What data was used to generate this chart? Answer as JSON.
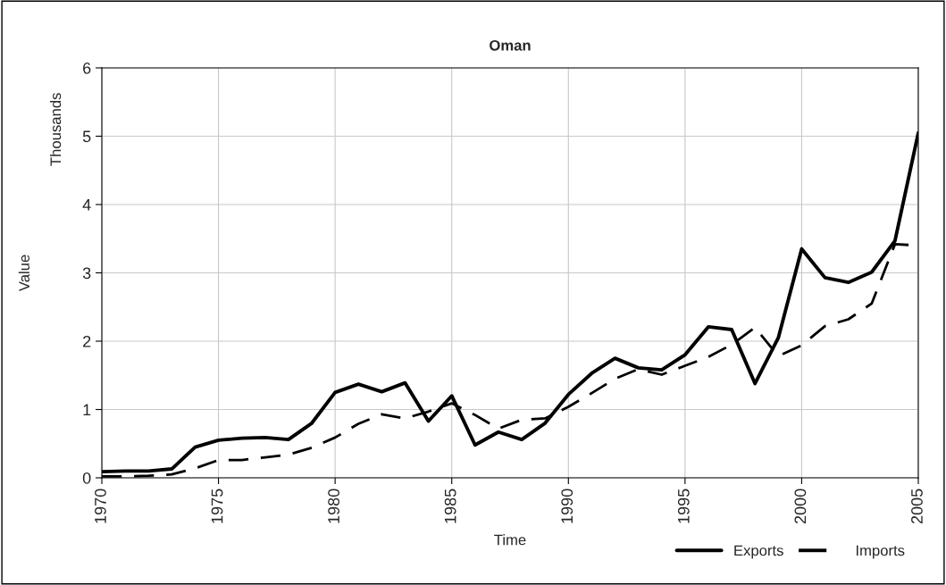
{
  "chart_data": {
    "type": "line",
    "title": "Oman",
    "xlabel": "Time",
    "ylabel": "Value",
    "annotations": [
      "Thousands"
    ],
    "x": [
      1970,
      1971,
      1972,
      1973,
      1974,
      1975,
      1976,
      1977,
      1978,
      1979,
      1980,
      1981,
      1982,
      1983,
      1984,
      1985,
      1986,
      1987,
      1988,
      1989,
      1990,
      1991,
      1992,
      1993,
      1994,
      1995,
      1996,
      1997,
      1998,
      1999,
      2000,
      2001,
      2002,
      2003,
      2004,
      2005
    ],
    "series": [
      {
        "name": "Exports",
        "color": "#000000",
        "line_style": "solid",
        "values": [
          0.09,
          0.1,
          0.1,
          0.13,
          0.45,
          0.55,
          0.58,
          0.59,
          0.56,
          0.8,
          1.25,
          1.37,
          1.26,
          1.39,
          0.83,
          1.2,
          0.48,
          0.67,
          0.56,
          0.8,
          1.22,
          1.53,
          1.75,
          1.61,
          1.58,
          1.8,
          2.21,
          2.17,
          1.38,
          2.05,
          3.35,
          2.93,
          2.86,
          3.01,
          3.47,
          5.05
        ]
      },
      {
        "name": "Imports",
        "color": "#000000",
        "line_style": "dashed",
        "values": [
          0.02,
          0.02,
          0.03,
          0.05,
          0.14,
          0.26,
          0.26,
          0.3,
          0.34,
          0.44,
          0.59,
          0.79,
          0.93,
          0.87,
          0.97,
          1.09,
          0.92,
          0.72,
          0.85,
          0.87,
          1.04,
          1.24,
          1.45,
          1.59,
          1.51,
          1.64,
          1.77,
          1.95,
          2.2,
          1.78,
          1.94,
          2.22,
          2.32,
          2.55,
          3.42,
          3.4
        ]
      }
    ],
    "xlim": [
      1970,
      2005
    ],
    "xticks": [
      1970,
      1975,
      1980,
      1985,
      1990,
      1995,
      2000,
      2005
    ],
    "ylim": [
      0,
      6
    ],
    "yticks": [
      0,
      1,
      2,
      3,
      4,
      5,
      6
    ],
    "grid": true,
    "legend": "bottom right",
    "marker": "none"
  }
}
